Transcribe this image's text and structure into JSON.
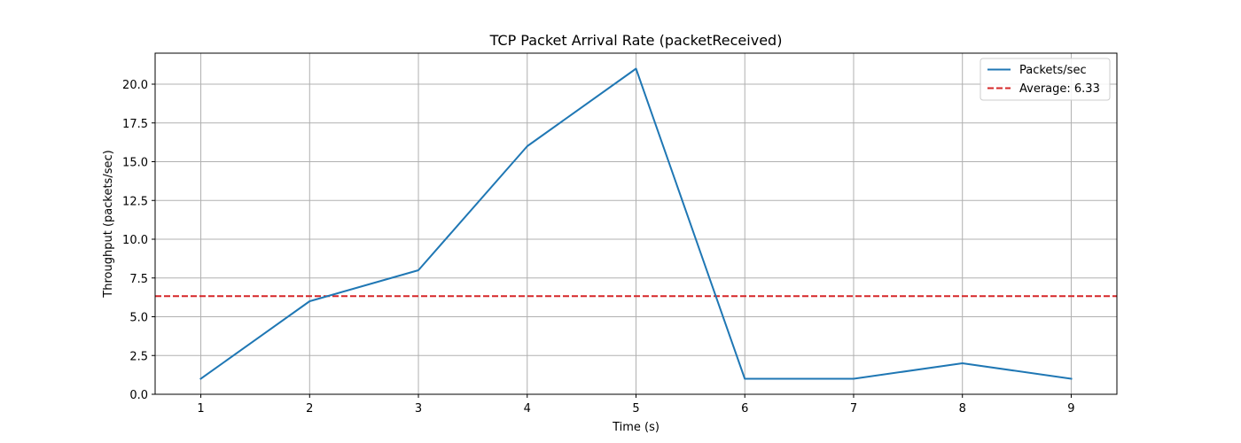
{
  "chart_data": {
    "type": "line",
    "title": "TCP Packet Arrival Rate (packetReceived)",
    "xlabel": "Time (s)",
    "ylabel": "Throughput (packets/sec)",
    "x": [
      1,
      2,
      3,
      4,
      5,
      6,
      7,
      8,
      9
    ],
    "series": [
      {
        "name": "Packets/sec",
        "values": [
          1,
          6,
          8,
          16,
          21,
          1,
          1,
          2,
          1
        ],
        "color": "#1f77b4"
      }
    ],
    "reference_lines": [
      {
        "name": "Average: 6.33",
        "value": 6.33,
        "color": "#d62728",
        "style": "dashed"
      }
    ],
    "xlim": [
      0.58,
      9.42
    ],
    "ylim": [
      0,
      22
    ],
    "xticks": [
      1,
      2,
      3,
      4,
      5,
      6,
      7,
      8,
      9
    ],
    "xtick_labels": [
      "1",
      "2",
      "3",
      "4",
      "5",
      "6",
      "7",
      "8",
      "9"
    ],
    "yticks": [
      0,
      2.5,
      5,
      7.5,
      10,
      12.5,
      15,
      17.5,
      20
    ],
    "ytick_labels": [
      "0.0",
      "2.5",
      "5.0",
      "7.5",
      "10.0",
      "12.5",
      "15.0",
      "17.5",
      "20.0"
    ],
    "grid": true,
    "legend": {
      "position": "top-right",
      "entries": [
        "Packets/sec",
        "Average: 6.33"
      ]
    }
  }
}
